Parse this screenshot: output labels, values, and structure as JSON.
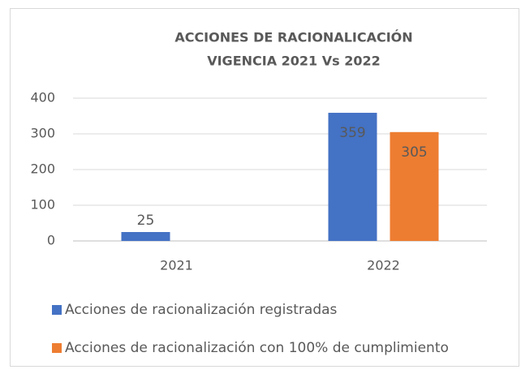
{
  "chart_data": {
    "type": "bar",
    "title": [
      "ACCIONES DE RACIONALICACIÓN",
      "VIGENCIA 2021 Vs 2022"
    ],
    "categories": [
      "2021",
      "2022"
    ],
    "series": [
      {
        "name": "Acciones de racionalización registradas",
        "color": "#4472c4",
        "values": [
          25,
          359
        ]
      },
      {
        "name": "Acciones de racionalización con 100% de cumplimiento",
        "color": "#ed7d31",
        "values": [
          null,
          305
        ]
      }
    ],
    "ylim": [
      0,
      400
    ],
    "yticks": [
      0,
      100,
      200,
      300,
      400
    ],
    "grid": true,
    "legend": "bottom"
  }
}
